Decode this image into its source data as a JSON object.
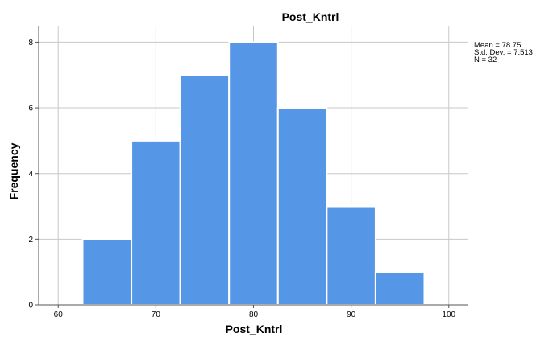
{
  "chart_data": {
    "type": "bar",
    "title": "Post_Kntrl",
    "xlabel": "Post_Kntrl",
    "ylabel": "Frequency",
    "bins": [
      {
        "start": 62.5,
        "end": 67.5,
        "value": 2
      },
      {
        "start": 67.5,
        "end": 72.5,
        "value": 5
      },
      {
        "start": 72.5,
        "end": 77.5,
        "value": 7
      },
      {
        "start": 77.5,
        "end": 82.5,
        "value": 8
      },
      {
        "start": 82.5,
        "end": 87.5,
        "value": 6
      },
      {
        "start": 87.5,
        "end": 92.5,
        "value": 3
      },
      {
        "start": 92.5,
        "end": 97.5,
        "value": 1
      }
    ],
    "xlim": [
      58,
      102
    ],
    "ylim": [
      0,
      8.5
    ],
    "xticks": [
      60,
      70,
      80,
      90,
      100
    ],
    "yticks": [
      0,
      2,
      4,
      6,
      8
    ],
    "grid": true,
    "colors": {
      "bar": "#5596e6",
      "bar_edge": "#ffffff",
      "grid": "#c8c8c8",
      "axis": "#555555"
    },
    "stats": {
      "mean": "Mean = 78.75",
      "std": "Std. Dev. = 7.513",
      "n": "N = 32"
    }
  }
}
